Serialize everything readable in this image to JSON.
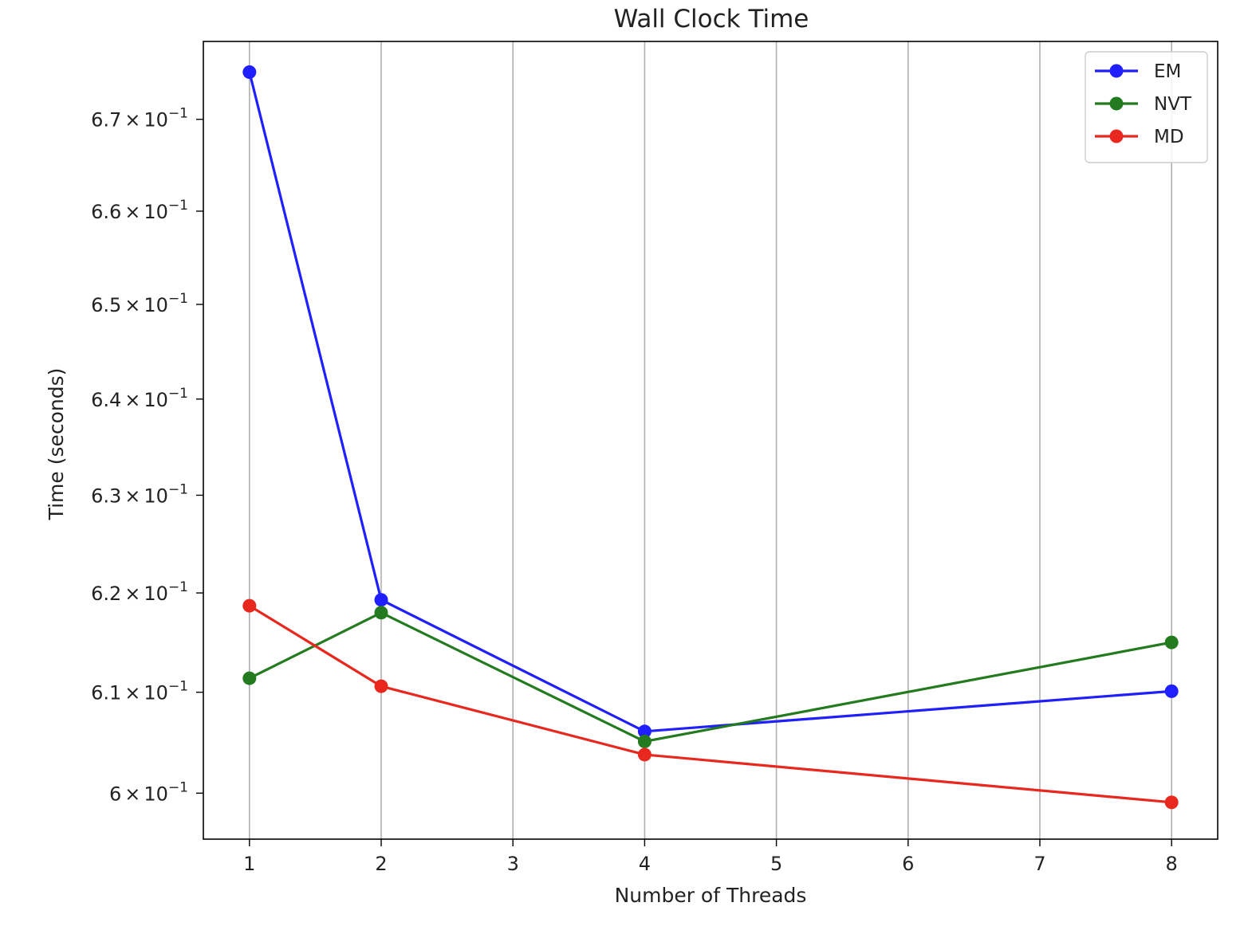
{
  "chart_data": {
    "type": "line",
    "title": "Wall Clock Time",
    "xlabel": "Number of Threads",
    "ylabel": "Time (seconds)",
    "yscale": "log",
    "xlim": [
      0.65,
      8.35
    ],
    "ylim": [
      0.5955,
      0.6786
    ],
    "x_ticks": [
      1,
      2,
      3,
      4,
      5,
      6,
      7,
      8
    ],
    "x_tick_labels": [
      "1",
      "2",
      "3",
      "4",
      "5",
      "6",
      "7",
      "8"
    ],
    "y_ticks": [
      {
        "value": 0.6,
        "mantissa": "6",
        "exponent": "−1"
      },
      {
        "value": 0.61,
        "mantissa": "6.1",
        "exponent": "−1"
      },
      {
        "value": 0.62,
        "mantissa": "6.2",
        "exponent": "−1"
      },
      {
        "value": 0.63,
        "mantissa": "6.3",
        "exponent": "−1"
      },
      {
        "value": 0.64,
        "mantissa": "6.4",
        "exponent": "−1"
      },
      {
        "value": 0.65,
        "mantissa": "6.5",
        "exponent": "−1"
      },
      {
        "value": 0.66,
        "mantissa": "6.6",
        "exponent": "−1"
      },
      {
        "value": 0.67,
        "mantissa": "6.7",
        "exponent": "−1"
      }
    ],
    "y_tick_times": "×",
    "y_tick_base": "10",
    "grid": "x-axis vertical lines",
    "legend_position": "top-right",
    "x": [
      1,
      2,
      4,
      8
    ],
    "series": [
      {
        "name": "EM",
        "color": "#1f1fff",
        "values": [
          0.6752,
          0.6193,
          0.6061,
          0.6101
        ]
      },
      {
        "name": "NVT",
        "color": "#237a1f",
        "values": [
          0.6114,
          0.618,
          0.6051,
          0.615
        ]
      },
      {
        "name": "MD",
        "color": "#e8281f",
        "values": [
          0.6187,
          0.6106,
          0.6038,
          0.5991
        ]
      }
    ]
  }
}
